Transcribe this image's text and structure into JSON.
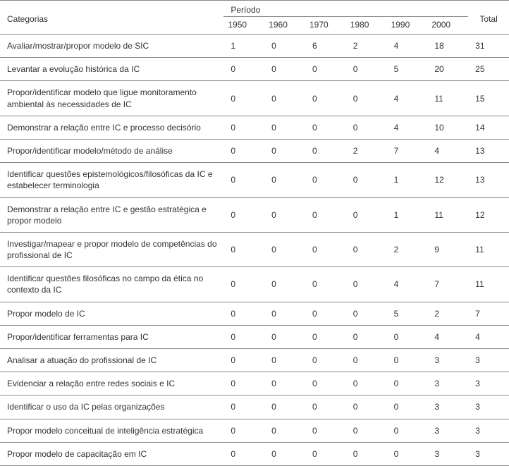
{
  "table": {
    "type": "table",
    "background_color": "#ffffff",
    "border_color": "#8a8a8a",
    "text_color": "#333333",
    "font_size": 12,
    "header": {
      "categories_label": "Categorias",
      "period_label": "Período",
      "total_label": "Total",
      "decades": [
        "1950",
        "1960",
        "1970",
        "1980",
        "1990",
        "2000"
      ]
    },
    "columns": [
      "Categorias",
      "1950",
      "1960",
      "1970",
      "1980",
      "1990",
      "2000",
      "Total"
    ],
    "rows": [
      {
        "label": "Avaliar/mostrar/propor modelo de SIC",
        "vals": [
          "1",
          "0",
          "6",
          "2",
          "4",
          "18"
        ],
        "total": "31"
      },
      {
        "label": "Levantar a evolução histórica da IC",
        "vals": [
          "0",
          "0",
          "0",
          "0",
          "5",
          "20"
        ],
        "total": "25"
      },
      {
        "label": "Propor/identificar modelo que ligue monitoramento ambiental às necessidades de IC",
        "vals": [
          "0",
          "0",
          "0",
          "0",
          "4",
          "11"
        ],
        "total": "15"
      },
      {
        "label": "Demonstrar a relação entre IC e processo decisório",
        "vals": [
          "0",
          "0",
          "0",
          "0",
          "4",
          "10"
        ],
        "total": "14"
      },
      {
        "label": "Propor/identificar modelo/método de análise",
        "vals": [
          "0",
          "0",
          "0",
          "2",
          "7",
          "4"
        ],
        "total": "13"
      },
      {
        "label": "Identificar questões epistemológicos/filosóficas da IC e estabelecer terminologia",
        "vals": [
          "0",
          "0",
          "0",
          "0",
          "1",
          "12"
        ],
        "total": "13"
      },
      {
        "label": "Demonstrar a relação entre IC e gestão estratégica e propor modelo",
        "vals": [
          "0",
          "0",
          "0",
          "0",
          "1",
          "11"
        ],
        "total": "12"
      },
      {
        "label": "Investigar/mapear e propor modelo de competências do profissional de IC",
        "vals": [
          "0",
          "0",
          "0",
          "0",
          "2",
          "9"
        ],
        "total": "11"
      },
      {
        "label": "Identificar questões filosóficas no campo da ética no contexto da IC",
        "vals": [
          "0",
          "0",
          "0",
          "0",
          "4",
          "7"
        ],
        "total": "11"
      },
      {
        "label": "Propor modelo de IC",
        "vals": [
          "0",
          "0",
          "0",
          "0",
          "5",
          "2"
        ],
        "total": "7"
      },
      {
        "label": "Propor/identificar ferramentas para IC",
        "vals": [
          "0",
          "0",
          "0",
          "0",
          "0",
          "4"
        ],
        "total": "4"
      },
      {
        "label": "Analisar a atuação do profissional de IC",
        "vals": [
          "0",
          "0",
          "0",
          "0",
          "0",
          "3"
        ],
        "total": "3"
      },
      {
        "label": "Evidenciar a relação entre redes sociais e IC",
        "vals": [
          "0",
          "0",
          "0",
          "0",
          "0",
          "3"
        ],
        "total": "3"
      },
      {
        "label": "Identificar o uso da IC pelas organizações",
        "vals": [
          "0",
          "0",
          "0",
          "0",
          "0",
          "3"
        ],
        "total": "3"
      },
      {
        "label": "Propor modelo conceitual de inteligência estratégica",
        "vals": [
          "0",
          "0",
          "0",
          "0",
          "0",
          "3"
        ],
        "total": "3"
      },
      {
        "label": "Propor modelo de capacitação em IC",
        "vals": [
          "0",
          "0",
          "0",
          "0",
          "0",
          "3"
        ],
        "total": "3"
      }
    ]
  }
}
